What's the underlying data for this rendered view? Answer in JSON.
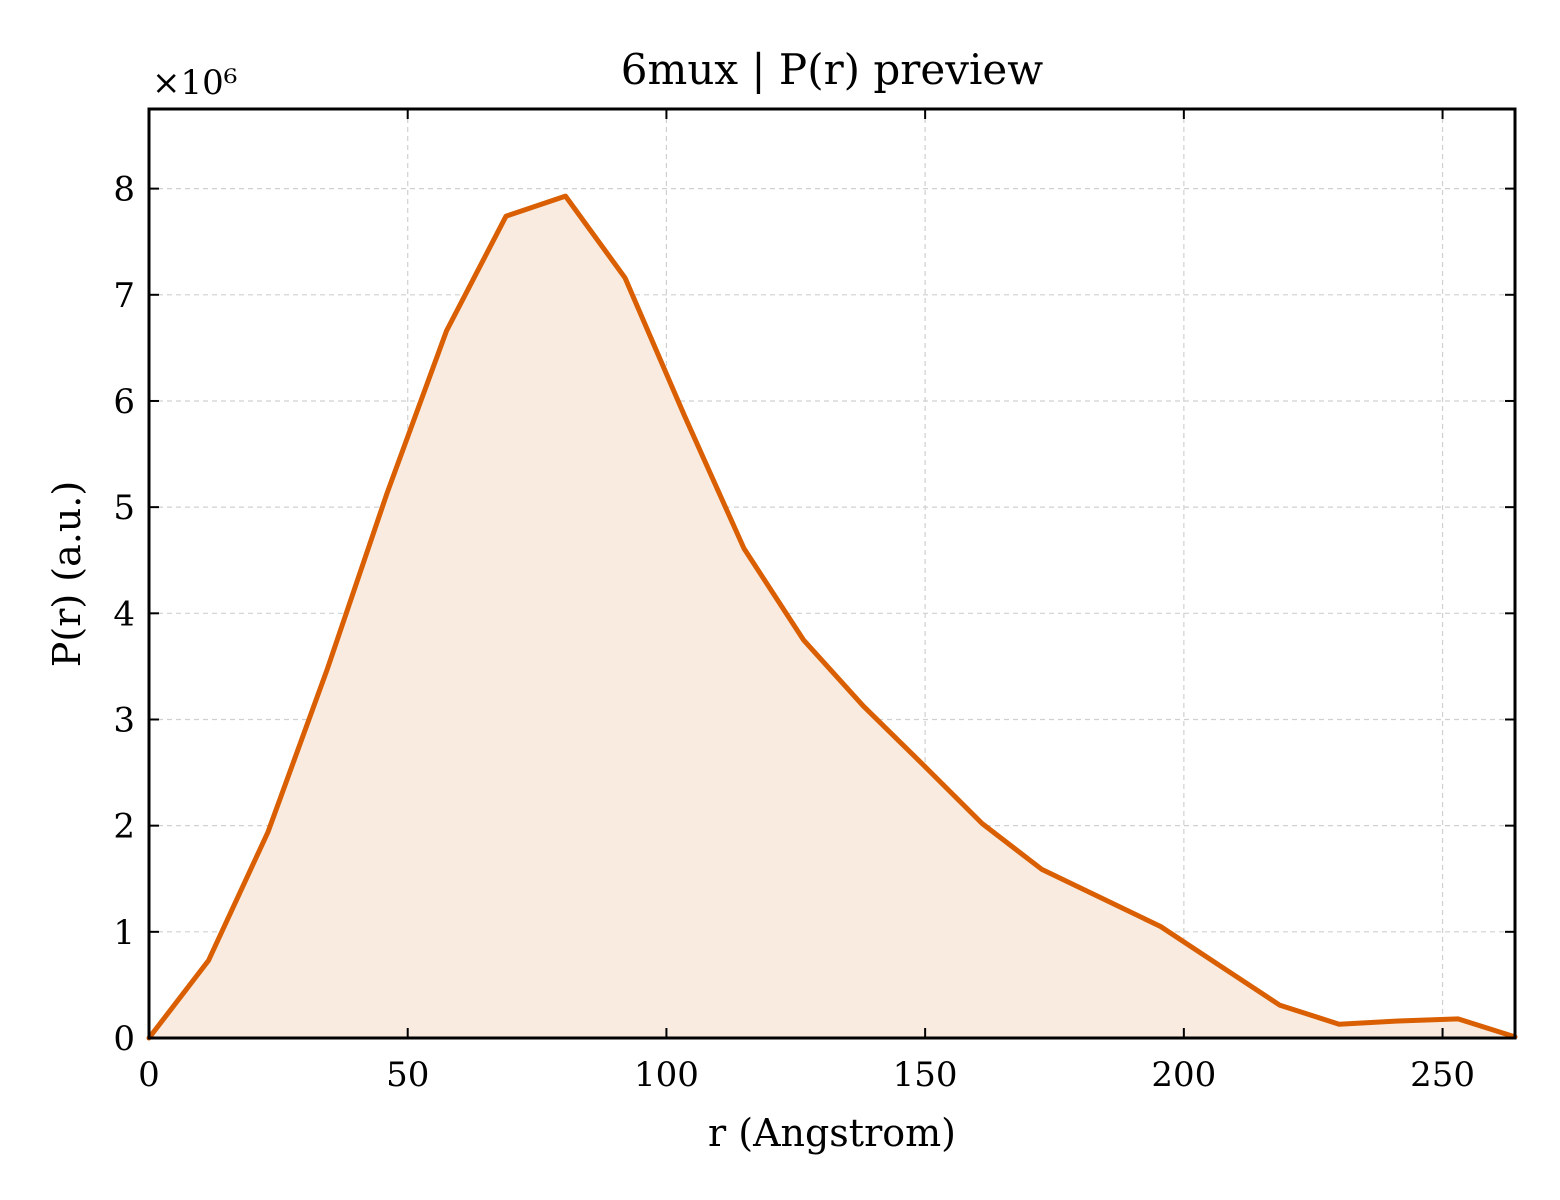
{
  "chart_data": {
    "type": "area",
    "title": "6mux | P(r) preview",
    "xlabel": "r (Angstrom)",
    "ylabel": "P(r) (a.u.)",
    "y_scale_label": "×10⁶",
    "xlim": [
      0,
      264
    ],
    "ylim": [
      0,
      8.75
    ],
    "xticks": [
      0,
      50,
      100,
      150,
      200,
      250
    ],
    "xtick_labels": [
      "0",
      "50",
      "100",
      "150",
      "200",
      "250"
    ],
    "yticks": [
      0,
      1,
      2,
      3,
      4,
      5,
      6,
      7,
      8
    ],
    "ytick_labels": [
      "0",
      "1",
      "2",
      "3",
      "4",
      "5",
      "6",
      "7",
      "8"
    ],
    "grid": true,
    "line_color": "#d95f02",
    "fill_color": "#f9ebe0",
    "series": [
      {
        "x": [
          0,
          11.5,
          23,
          34.5,
          46,
          57.5,
          69,
          80.5,
          92,
          103.5,
          115,
          126.5,
          138,
          149.5,
          161,
          172.5,
          184,
          195.5,
          207,
          218.5,
          230,
          241.5,
          253,
          264
        ],
        "y": [
          0.0,
          0.73,
          1.94,
          3.48,
          5.13,
          6.66,
          7.74,
          7.93,
          7.16,
          5.86,
          4.61,
          3.75,
          3.13,
          2.58,
          2.02,
          1.59,
          1.32,
          1.05,
          0.68,
          0.31,
          0.13,
          0.16,
          0.18,
          0.01
        ]
      }
    ]
  }
}
